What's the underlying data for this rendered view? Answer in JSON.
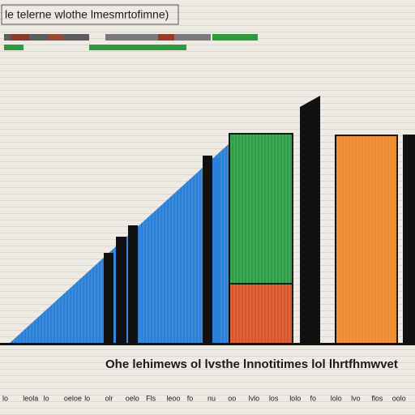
{
  "header": {
    "title": "le telerne wlothe lmesmrtofimne)"
  },
  "caption": "Ohe lehimews ol lvsthe lnnotitimes lol lhrtfhmwvet",
  "footer": {
    "labels": [
      "lo",
      "leola",
      "lo",
      "oeloe",
      "lo",
      "olr",
      "oelo",
      "Fls",
      "leoo",
      "fo",
      "nu",
      "oo",
      "lvlo",
      "los",
      "lolo",
      "fo",
      "lolo",
      "lvo",
      "flos",
      "oolo"
    ]
  }
}
